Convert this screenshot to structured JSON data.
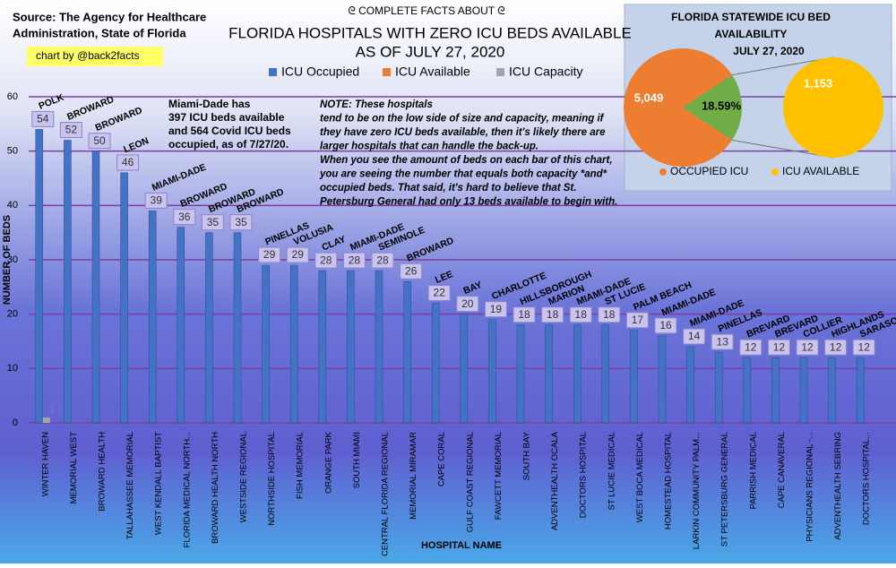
{
  "chart_data": [
    {
      "type": "bar",
      "source": [
        "Source: The Agency for Healthcare",
        "Administration, State of Florida"
      ],
      "credit": "chart by @back2facts",
      "header": "ᘓ COMPLETE FACTS ABOUT ᘓ",
      "title": [
        "FLORIDA HOSPITALS WITH ZERO ICU BEDS AVAILABLE",
        "AS OF JULY 27, 2020"
      ],
      "note_miami": [
        "Miami-Dade has",
        "397 ICU beds available",
        "and 564 Covid ICU beds",
        "occupied, as of 7/27/20."
      ],
      "note": [
        "NOTE: These hospitals",
        "tend to be on the low side of size and capacity, meaning if",
        "they have zero ICU beds available, then it's likely there are",
        "larger hospitals that can handle the back-up.",
        "When you see the amount of beds on each bar of this chart,",
        "you are seeing the number that equals both capacity *and*",
        "occupied beds. That said, it's hard to believe that St.",
        "Petersburg General had only 13 beds available to begin with."
      ],
      "x_label": "HOSPITAL NAME",
      "y_label": "NUMBER OF BEDS",
      "categories": [
        "WINTER HAVEN",
        "MEMORIAL WEST",
        "BROWARD HEALTH",
        "TALLAHASSEE MEMORIAL",
        "WEST KENDALL BAPTIST",
        "FLORIDA MEDICAL NORTH...",
        "BROWARD HEALTH NORTH",
        "WESTSIDE REGIONAL",
        "NORTHSIDE HOSPITAL",
        "FISH MEMORIAL",
        "ORANGE PARK",
        "SOUTH MIAMI",
        "CENTRAL FLORIDA REGIONAL",
        "MEMORIAL MIRAMAR",
        "CAPE CORAL",
        "GULF COAST REGIONAL",
        "FAWCETT MEMORIAL",
        "SOUTH BAY",
        "ADVENTHEALTH OCALA",
        "DOCTORS HOSPITAL",
        "ST LUCIE MEDICAL",
        "WEST BOCA MEDICAL",
        "HOMESTEAD HOSPITAL",
        "LARKIN COMMUNITY PALM...",
        "ST PETERSBURG GENERAL",
        "PARRISH MEDICAL",
        "CAPE CANAVERAL",
        "PHYSICIANS REGIONAL -...",
        "ADVENTHEALTH SEBRING",
        "DOCTORS HOSPITAL..."
      ],
      "counties": [
        "POLK",
        "BROWARD",
        "BROWARD",
        "LEON",
        "MIAMI-DADE",
        "BROWARD",
        "BROWARD",
        "BROWARD",
        "PINELLAS",
        "VOLUSIA",
        "CLAY",
        "MIAMI-DADE",
        "SEMINOLE",
        "BROWARD",
        "LEE",
        "BAY",
        "CHARLOTTE",
        "HILLSBOROUGH",
        "MARION",
        "MIAMI-DADE",
        "ST LUCIE",
        "PALM BEACH",
        "MIAMI-DADE",
        "MIAMI-DADE",
        "PINELLAS",
        "BREVARD",
        "BREVARD",
        "COLLIER",
        "HIGHLANDS",
        "SARASOTA"
      ],
      "series": [
        {
          "name": "ICU Occupied",
          "color": "#4472c4",
          "values": [
            54,
            52,
            50,
            46,
            39,
            36,
            35,
            35,
            29,
            29,
            28,
            28,
            28,
            26,
            22,
            20,
            19,
            18,
            18,
            18,
            18,
            17,
            16,
            14,
            13,
            12,
            12,
            12,
            12,
            12
          ]
        },
        {
          "name": "ICU Available",
          "color": "#ed7d31",
          "values": [
            0,
            0,
            0,
            0,
            0,
            0,
            0,
            0,
            0,
            0,
            0,
            0,
            0,
            0,
            0,
            0,
            0,
            0,
            0,
            0,
            0,
            0,
            0,
            0,
            0,
            0,
            0,
            0,
            0,
            0
          ]
        },
        {
          "name": "ICU Capacity",
          "color": "#a5a5a5",
          "values": [
            1,
            null,
            null,
            null,
            null,
            null,
            null,
            null,
            null,
            null,
            null,
            null,
            null,
            null,
            null,
            null,
            null,
            null,
            null,
            null,
            null,
            null,
            null,
            null,
            null,
            null,
            null,
            null,
            null,
            null
          ]
        }
      ],
      "ylim": [
        0,
        60
      ],
      "yticks": [
        0,
        10,
        20,
        30,
        40,
        50,
        60
      ],
      "grid": true
    },
    {
      "type": "pie",
      "title": [
        "FLORIDA STATEWIDE ICU BED",
        "AVAILABILITY"
      ],
      "subtitle": "JULY 27, 2020",
      "categories": [
        "OCCUPIED ICU",
        "ICU AVAILABLE"
      ],
      "values": [
        5049,
        1153
      ],
      "value_labels": [
        "5,049",
        "1,153"
      ],
      "colors": [
        "#ed7d31",
        "#70ad47"
      ],
      "detail_color": "#ffc000",
      "percent_label": "18.59%"
    }
  ]
}
